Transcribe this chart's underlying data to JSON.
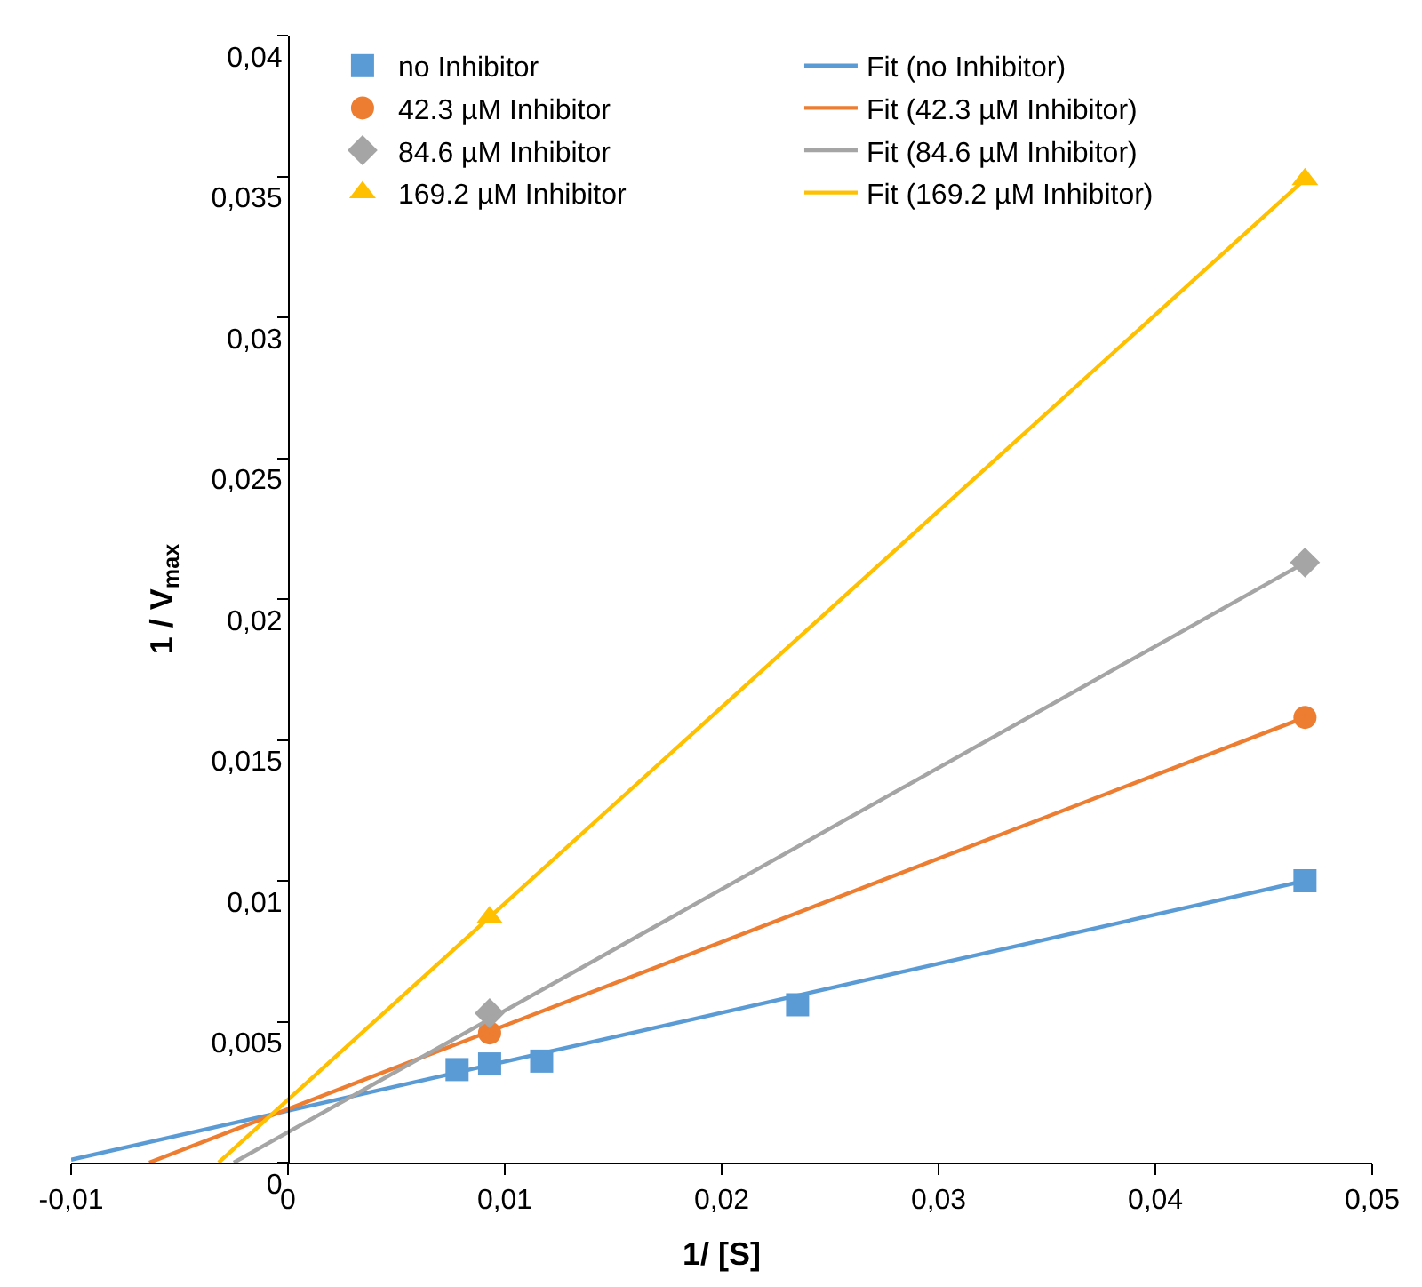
{
  "chart_data": {
    "type": "scatter",
    "xlabel": "1/ [S]",
    "ylabel": "1 / V$_{max}$",
    "xlim": [
      -0.01,
      0.05
    ],
    "xticks": [
      {
        "value": -0.01,
        "label": "-0,01"
      },
      0,
      {
        "value": 0.01,
        "label": "0,01"
      },
      {
        "value": 0.02,
        "label": "0,02"
      },
      {
        "value": 0.03,
        "label": "0,03"
      },
      {
        "value": 0.04,
        "label": "0,04"
      },
      {
        "value": 0.05,
        "label": "0,05"
      }
    ],
    "ylim": [
      0,
      0.04
    ],
    "yticks": [
      0,
      {
        "value": 0.005,
        "label": "0,005"
      },
      {
        "value": 0.01,
        "label": "0,01"
      },
      {
        "value": 0.015,
        "label": "0,015"
      },
      {
        "value": 0.02,
        "label": "0,02"
      },
      {
        "value": 0.025,
        "label": "0,025"
      },
      {
        "value": 0.03,
        "label": "0,03"
      },
      {
        "value": 0.035,
        "label": "0,035"
      },
      {
        "value": 0.04,
        "label": "0,04"
      }
    ],
    "grid": false,
    "legend": "top left",
    "series": [
      {
        "name": "no Inhibitor",
        "marker": "square",
        "color": "#5b9bd5",
        "x": [
          0.0078,
          0.0093,
          0.0117,
          0.0235,
          0.0469
        ],
        "values": [
          0.0033,
          0.0035,
          0.0036,
          0.0056,
          0.01
        ]
      },
      {
        "name": "42.3 µM Inhibitor",
        "marker": "circle",
        "color": "#ed7d31",
        "x": [
          0.0093,
          0.0469
        ],
        "values": [
          0.0046,
          0.0158
        ]
      },
      {
        "name": "84.6 µM Inhibitor",
        "marker": "diamond",
        "color": "#a5a5a5",
        "x": [
          0.0093,
          0.0469
        ],
        "values": [
          0.0053,
          0.0213
        ]
      },
      {
        "name": "169.2 µM Inhibitor",
        "marker": "triangle",
        "color": "#ffc000",
        "x": [
          0.0093,
          0.0469
        ],
        "values": [
          0.0087,
          0.0349
        ]
      },
      {
        "name": "Fit (no Inhibitor)",
        "type": "line",
        "marker": "none",
        "color": "#5b9bd5",
        "x": [
          -0.01,
          0.0469
        ],
        "values": [
          0.0001,
          0.01
        ]
      },
      {
        "name": "Fit (42.3 µM Inhibitor)",
        "type": "line",
        "marker": "none",
        "color": "#ed7d31",
        "x": [
          -0.0064,
          0.0469
        ],
        "values": [
          0,
          0.0158
        ]
      },
      {
        "name": "Fit (84.6 µM Inhibitor)",
        "type": "line",
        "marker": "none",
        "color": "#a5a5a5",
        "x": [
          -0.0025,
          0.0469
        ],
        "values": [
          0,
          0.0213
        ]
      },
      {
        "name": "Fit (169.2 µM Inhibitor)",
        "type": "line",
        "marker": "none",
        "color": "#ffc000",
        "x": [
          -0.0032,
          0.0469
        ],
        "values": [
          0,
          0.0349
        ]
      }
    ]
  }
}
